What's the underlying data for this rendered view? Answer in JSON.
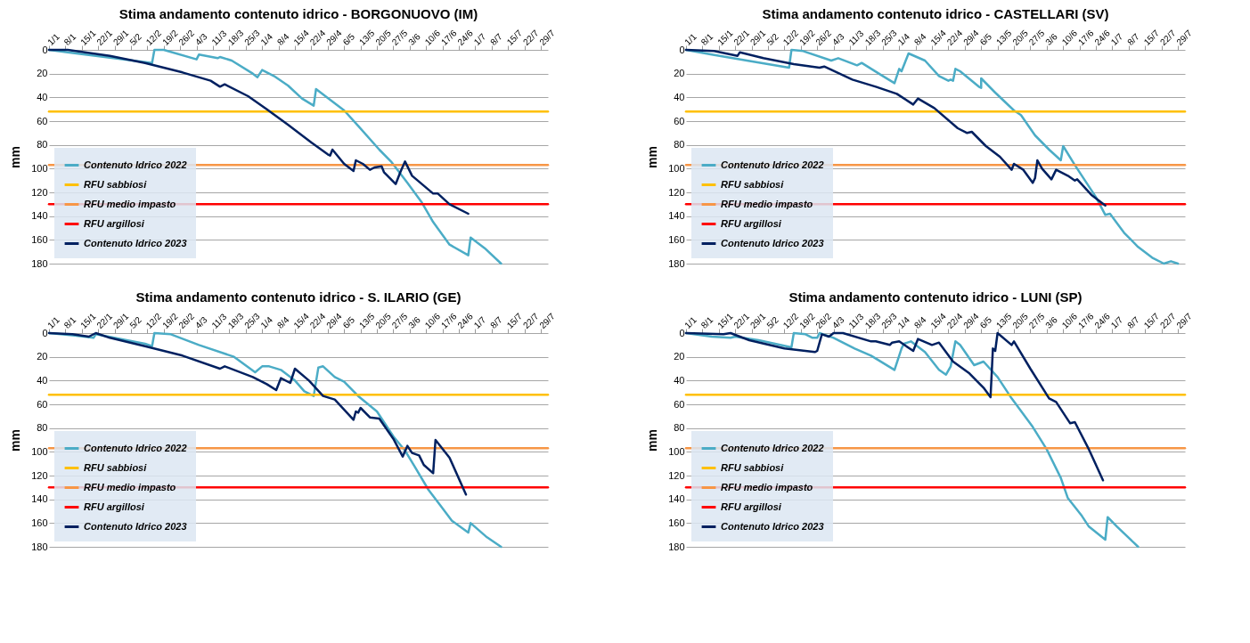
{
  "chart_data": [
    {
      "type": "line",
      "title": "Stima andamento contenuto idrico - BORGONUOVO (IM)",
      "ylabel": "mm",
      "xlim": [
        "--01-01",
        "--08-01"
      ],
      "ylim": [
        180,
        0
      ],
      "yticks": [
        0,
        20,
        40,
        60,
        80,
        100,
        120,
        140,
        160,
        180
      ],
      "grid": "y",
      "legend": "bottom left",
      "xticks": [
        {
          "value": "--01-01",
          "label": "1/1"
        },
        {
          "value": "--01-08",
          "label": "8/1"
        },
        {
          "value": "--01-15",
          "label": "15/1"
        },
        {
          "value": "--01-22",
          "label": "22/1"
        },
        {
          "value": "--01-29",
          "label": "29/1"
        },
        {
          "value": "--02-05",
          "label": "5/2"
        },
        {
          "value": "--02-12",
          "label": "12/2"
        },
        {
          "value": "--02-19",
          "label": "19/2"
        },
        {
          "value": "--02-26",
          "label": "26/2"
        },
        {
          "value": "--03-04",
          "label": "4/3"
        },
        {
          "value": "--03-11",
          "label": "11/3"
        },
        {
          "value": "--03-18",
          "label": "18/3"
        },
        {
          "value": "--03-25",
          "label": "25/3"
        },
        {
          "value": "--04-01",
          "label": "1/4"
        },
        {
          "value": "--04-08",
          "label": "8/4"
        },
        {
          "value": "--04-15",
          "label": "15/4"
        },
        {
          "value": "--04-22",
          "label": "22/4"
        },
        {
          "value": "--04-29",
          "label": "29/4"
        },
        {
          "value": "--05-06",
          "label": "6/5"
        },
        {
          "value": "--05-13",
          "label": "13/5"
        },
        {
          "value": "--05-20",
          "label": "20/5"
        },
        {
          "value": "--05-27",
          "label": "27/5"
        },
        {
          "value": "--06-03",
          "label": "3/6"
        },
        {
          "value": "--06-10",
          "label": "10/6"
        },
        {
          "value": "--06-17",
          "label": "17/6"
        },
        {
          "value": "--06-24",
          "label": "24/6"
        },
        {
          "value": "--07-01",
          "label": "1/7"
        },
        {
          "value": "--07-08",
          "label": "8/7"
        },
        {
          "value": "--07-15",
          "label": "15/7"
        },
        {
          "value": "--07-22",
          "label": "22/7"
        },
        {
          "value": "--07-29",
          "label": "29/7"
        }
      ],
      "series": [
        {
          "name": "Contenuto Idrico 2022",
          "color": "#4bacc6",
          "x": [
            "--01-01",
            "--01-09",
            "--02-14",
            "--02-15",
            "--02-19",
            "--03-04",
            "--03-05",
            "--03-13",
            "--03-14",
            "--03-19",
            "--03-28",
            "--03-30",
            "--04-01",
            "--04-06",
            "--04-12",
            "--04-18",
            "--04-23",
            "--04-24",
            "--04-28",
            "--05-06",
            "--05-12",
            "--05-21",
            "--05-26",
            "--06-02",
            "--06-08",
            "--06-13",
            "--06-20",
            "--06-28",
            "--06-29",
            "--07-05",
            "--07-12"
          ],
          "values": [
            0,
            2,
            11,
            0,
            0,
            8,
            4,
            7,
            6,
            9,
            20,
            23,
            17,
            22,
            30,
            41,
            47,
            33,
            39,
            51,
            64,
            84,
            94,
            112,
            128,
            145,
            164,
            173,
            158,
            167,
            180
          ]
        },
        {
          "name": "RFU sabbiosi",
          "color": "#ffc000",
          "x": [
            "--01-01",
            "--08-01"
          ],
          "values": [
            52,
            52
          ]
        },
        {
          "name": "RFU medio impasto",
          "color": "#f79646",
          "x": [
            "--01-01",
            "--08-01"
          ],
          "values": [
            97,
            97
          ]
        },
        {
          "name": "RFU argillosi",
          "color": "#ff0000",
          "x": [
            "--01-01",
            "--08-01"
          ],
          "values": [
            130,
            130
          ]
        },
        {
          "name": "Contenuto Idrico 2023",
          "color": "#002060",
          "x": [
            "--01-01",
            "--01-09",
            "--01-27",
            "--02-11",
            "--02-27",
            "--03-10",
            "--03-14",
            "--03-16",
            "--03-26",
            "--04-03",
            "--04-12",
            "--04-22",
            "--04-29",
            "--04-30",
            "--05-01",
            "--05-06",
            "--05-10",
            "--05-11",
            "--05-14",
            "--05-17",
            "--05-19",
            "--05-22",
            "--05-23",
            "--05-28",
            "--05-30",
            "--06-01",
            "--06-04",
            "--06-13",
            "--06-15",
            "--06-20",
            "--06-28"
          ],
          "values": [
            0,
            0,
            5,
            11,
            19,
            26,
            31,
            29,
            39,
            50,
            63,
            78,
            88,
            89,
            84,
            96,
            102,
            93,
            96,
            101,
            99,
            98,
            103,
            113,
            103,
            94,
            106,
            121,
            121,
            130,
            138
          ]
        }
      ]
    },
    {
      "type": "line",
      "title": "Stima andamento contenuto idrico - CASTELLARI (SV)",
      "ylabel": "mm",
      "xlim": [
        "--01-01",
        "--08-01"
      ],
      "ylim": [
        180,
        0
      ],
      "yticks": [
        0,
        20,
        40,
        60,
        80,
        100,
        120,
        140,
        160,
        180
      ],
      "grid": "y",
      "legend": "bottom left",
      "xticks": [
        {
          "value": "--01-01",
          "label": "1/1"
        },
        {
          "value": "--01-08",
          "label": "8/1"
        },
        {
          "value": "--01-15",
          "label": "15/1"
        },
        {
          "value": "--01-22",
          "label": "22/1"
        },
        {
          "value": "--01-29",
          "label": "29/1"
        },
        {
          "value": "--02-05",
          "label": "5/2"
        },
        {
          "value": "--02-12",
          "label": "12/2"
        },
        {
          "value": "--02-19",
          "label": "19/2"
        },
        {
          "value": "--02-26",
          "label": "26/2"
        },
        {
          "value": "--03-04",
          "label": "4/3"
        },
        {
          "value": "--03-11",
          "label": "11/3"
        },
        {
          "value": "--03-18",
          "label": "18/3"
        },
        {
          "value": "--03-25",
          "label": "25/3"
        },
        {
          "value": "--04-01",
          "label": "1/4"
        },
        {
          "value": "--04-08",
          "label": "8/4"
        },
        {
          "value": "--04-15",
          "label": "15/4"
        },
        {
          "value": "--04-22",
          "label": "22/4"
        },
        {
          "value": "--04-29",
          "label": "29/4"
        },
        {
          "value": "--05-06",
          "label": "6/5"
        },
        {
          "value": "--05-13",
          "label": "13/5"
        },
        {
          "value": "--05-20",
          "label": "20/5"
        },
        {
          "value": "--05-27",
          "label": "27/5"
        },
        {
          "value": "--06-03",
          "label": "3/6"
        },
        {
          "value": "--06-10",
          "label": "10/6"
        },
        {
          "value": "--06-17",
          "label": "17/6"
        },
        {
          "value": "--06-24",
          "label": "24/6"
        },
        {
          "value": "--07-01",
          "label": "1/7"
        },
        {
          "value": "--07-08",
          "label": "8/7"
        },
        {
          "value": "--07-15",
          "label": "15/7"
        },
        {
          "value": "--07-22",
          "label": "22/7"
        },
        {
          "value": "--07-29",
          "label": "29/7"
        }
      ],
      "series": [
        {
          "name": "Contenuto Idrico 2022",
          "color": "#4bacc6",
          "x": [
            "--01-01",
            "--01-12",
            "--01-27",
            "--02-14",
            "--02-15",
            "--02-20",
            "--03-03",
            "--03-06",
            "--03-14",
            "--03-16",
            "--03-25",
            "--03-30",
            "--04-01",
            "--04-02",
            "--04-05",
            "--04-12",
            "--04-18",
            "--04-22",
            "--04-23",
            "--04-24",
            "--04-25",
            "--04-27",
            "--05-05",
            "--05-06",
            "--05-06",
            "--05-12",
            "--05-20",
            "--05-23",
            "--05-29",
            "--06-04",
            "--06-09",
            "--06-10",
            "--06-15",
            "--06-21",
            "--06-24",
            "--06-28",
            "--06-30",
            "--07-06",
            "--07-12",
            "--07-18",
            "--07-23",
            "--07-26",
            "--07-29"
          ],
          "values": [
            0,
            4,
            9,
            15,
            0,
            1,
            9,
            7,
            13,
            11,
            22,
            28,
            16,
            18,
            3,
            9,
            22,
            26,
            25,
            26,
            16,
            18,
            31,
            32,
            24,
            36,
            51,
            55,
            72,
            84,
            93,
            81,
            97,
            115,
            124,
            139,
            138,
            154,
            166,
            175,
            180,
            178,
            180
          ]
        },
        {
          "name": "RFU sabbiosi",
          "color": "#ffc000",
          "x": [
            "--01-01",
            "--08-01"
          ],
          "values": [
            52,
            52
          ]
        },
        {
          "name": "RFU medio impasto",
          "color": "#f79646",
          "x": [
            "--01-01",
            "--08-01"
          ],
          "values": [
            97,
            97
          ]
        },
        {
          "name": "RFU argillosi",
          "color": "#ff0000",
          "x": [
            "--01-01",
            "--08-01"
          ],
          "values": [
            130,
            130
          ]
        },
        {
          "name": "Contenuto Idrico 2023",
          "color": "#002060",
          "x": [
            "--01-01",
            "--01-13",
            "--01-23",
            "--01-24",
            "--02-03",
            "--02-16",
            "--02-27",
            "--02-29",
            "--03-12",
            "--03-22",
            "--03-31",
            "--04-07",
            "--04-09",
            "--04-16",
            "--04-26",
            "--04-30",
            "--05-02",
            "--05-08",
            "--05-14",
            "--05-19",
            "--05-20",
            "--05-24",
            "--05-28",
            "--05-29",
            "--05-30",
            "--06-01",
            "--06-05",
            "--06-07",
            "--06-12",
            "--06-15",
            "--06-16",
            "--06-22",
            "--06-28"
          ],
          "values": [
            0,
            1,
            5,
            2,
            7,
            12,
            15,
            14,
            25,
            31,
            37,
            46,
            41,
            49,
            66,
            70,
            69,
            81,
            90,
            101,
            96,
            101,
            112,
            108,
            93,
            100,
            109,
            101,
            106,
            110,
            109,
            122,
            131
          ]
        }
      ]
    },
    {
      "type": "line",
      "title": "Stima andamento contenuto idrico - S. ILARIO (GE)",
      "ylabel": "mm",
      "xlim": [
        "--01-01",
        "--08-01"
      ],
      "ylim": [
        180,
        0
      ],
      "yticks": [
        0,
        20,
        40,
        60,
        80,
        100,
        120,
        140,
        160,
        180
      ],
      "grid": "y",
      "legend": "bottom left",
      "xticks": [
        {
          "value": "--01-01",
          "label": "1/1"
        },
        {
          "value": "--01-08",
          "label": "8/1"
        },
        {
          "value": "--01-15",
          "label": "15/1"
        },
        {
          "value": "--01-22",
          "label": "22/1"
        },
        {
          "value": "--01-29",
          "label": "29/1"
        },
        {
          "value": "--02-05",
          "label": "5/2"
        },
        {
          "value": "--02-12",
          "label": "12/2"
        },
        {
          "value": "--02-19",
          "label": "19/2"
        },
        {
          "value": "--02-26",
          "label": "26/2"
        },
        {
          "value": "--03-04",
          "label": "4/3"
        },
        {
          "value": "--03-11",
          "label": "11/3"
        },
        {
          "value": "--03-18",
          "label": "18/3"
        },
        {
          "value": "--03-25",
          "label": "25/3"
        },
        {
          "value": "--04-01",
          "label": "1/4"
        },
        {
          "value": "--04-08",
          "label": "8/4"
        },
        {
          "value": "--04-15",
          "label": "15/4"
        },
        {
          "value": "--04-22",
          "label": "22/4"
        },
        {
          "value": "--04-29",
          "label": "29/4"
        },
        {
          "value": "--05-06",
          "label": "6/5"
        },
        {
          "value": "--05-13",
          "label": "13/5"
        },
        {
          "value": "--05-20",
          "label": "20/5"
        },
        {
          "value": "--05-27",
          "label": "27/5"
        },
        {
          "value": "--06-03",
          "label": "3/6"
        },
        {
          "value": "--06-10",
          "label": "10/6"
        },
        {
          "value": "--06-17",
          "label": "17/6"
        },
        {
          "value": "--06-24",
          "label": "24/6"
        },
        {
          "value": "--07-01",
          "label": "1/7"
        },
        {
          "value": "--07-08",
          "label": "8/7"
        },
        {
          "value": "--07-15",
          "label": "15/7"
        },
        {
          "value": "--07-22",
          "label": "22/7"
        },
        {
          "value": "--07-29",
          "label": "29/7"
        }
      ],
      "series": [
        {
          "name": "Contenuto Idrico 2022",
          "color": "#4bacc6",
          "x": [
            "--01-01",
            "--01-12",
            "--01-20",
            "--01-21",
            "--02-11",
            "--02-14",
            "--02-15",
            "--02-22",
            "--03-05",
            "--03-20",
            "--03-29",
            "--04-01",
            "--04-04",
            "--04-09",
            "--04-15",
            "--04-19",
            "--04-23",
            "--04-25",
            "--04-27",
            "--05-02",
            "--05-06",
            "--05-12",
            "--05-20",
            "--05-27",
            "--06-01",
            "--06-05",
            "--06-11",
            "--06-16",
            "--06-21",
            "--06-28",
            "--06-29",
            "--07-06",
            "--07-12"
          ],
          "values": [
            0,
            2,
            4,
            1,
            9,
            11,
            0,
            1,
            10,
            20,
            33,
            28,
            28,
            31,
            40,
            49,
            53,
            29,
            28,
            37,
            41,
            53,
            66,
            87,
            99,
            112,
            132,
            145,
            158,
            168,
            160,
            172,
            180
          ]
        },
        {
          "name": "RFU sabbiosi",
          "color": "#ffc000",
          "x": [
            "--01-01",
            "--08-01"
          ],
          "values": [
            52,
            52
          ]
        },
        {
          "name": "RFU medio impasto",
          "color": "#f79646",
          "x": [
            "--01-01",
            "--08-01"
          ],
          "values": [
            97,
            97
          ]
        },
        {
          "name": "RFU argillosi",
          "color": "#ff0000",
          "x": [
            "--01-01",
            "--08-01"
          ],
          "values": [
            130,
            130
          ]
        },
        {
          "name": "Contenuto Idrico 2023",
          "color": "#002060",
          "x": [
            "--01-01",
            "--01-11",
            "--01-18",
            "--01-21",
            "--01-27",
            "--02-11",
            "--02-27",
            "--03-14",
            "--03-16",
            "--03-28",
            "--04-03",
            "--04-07",
            "--04-09",
            "--04-13",
            "--04-15",
            "--04-21",
            "--04-27",
            "--05-02",
            "--05-10",
            "--05-11",
            "--05-12",
            "--05-13",
            "--05-17",
            "--05-21",
            "--05-27",
            "--05-31",
            "--06-02",
            "--06-04",
            "--06-07",
            "--06-09",
            "--06-13",
            "--06-14",
            "--06-20",
            "--06-27"
          ],
          "values": [
            0,
            1,
            3,
            0,
            4,
            11,
            19,
            30,
            28,
            37,
            43,
            48,
            38,
            42,
            30,
            40,
            53,
            56,
            73,
            66,
            67,
            63,
            71,
            72,
            89,
            104,
            95,
            101,
            103,
            111,
            118,
            90,
            105,
            136
          ]
        }
      ]
    },
    {
      "type": "line",
      "title": "Stima andamento contenuto idrico - LUNI (SP)",
      "ylabel": "mm",
      "xlim": [
        "--01-01",
        "--08-01"
      ],
      "ylim": [
        180,
        0
      ],
      "yticks": [
        0,
        20,
        40,
        60,
        80,
        100,
        120,
        140,
        160,
        180
      ],
      "grid": "y",
      "legend": "bottom left",
      "xticks": [
        {
          "value": "--01-01",
          "label": "1/1"
        },
        {
          "value": "--01-08",
          "label": "8/1"
        },
        {
          "value": "--01-15",
          "label": "15/1"
        },
        {
          "value": "--01-22",
          "label": "22/1"
        },
        {
          "value": "--01-29",
          "label": "29/1"
        },
        {
          "value": "--02-05",
          "label": "5/2"
        },
        {
          "value": "--02-12",
          "label": "12/2"
        },
        {
          "value": "--02-19",
          "label": "19/2"
        },
        {
          "value": "--02-26",
          "label": "26/2"
        },
        {
          "value": "--03-04",
          "label": "4/3"
        },
        {
          "value": "--03-11",
          "label": "11/3"
        },
        {
          "value": "--03-18",
          "label": "18/3"
        },
        {
          "value": "--03-25",
          "label": "25/3"
        },
        {
          "value": "--04-01",
          "label": "1/4"
        },
        {
          "value": "--04-08",
          "label": "8/4"
        },
        {
          "value": "--04-15",
          "label": "15/4"
        },
        {
          "value": "--04-22",
          "label": "22/4"
        },
        {
          "value": "--04-29",
          "label": "29/4"
        },
        {
          "value": "--05-06",
          "label": "6/5"
        },
        {
          "value": "--05-13",
          "label": "13/5"
        },
        {
          "value": "--05-20",
          "label": "20/5"
        },
        {
          "value": "--05-27",
          "label": "27/5"
        },
        {
          "value": "--06-03",
          "label": "3/6"
        },
        {
          "value": "--06-10",
          "label": "10/6"
        },
        {
          "value": "--06-17",
          "label": "17/6"
        },
        {
          "value": "--06-24",
          "label": "24/6"
        },
        {
          "value": "--07-01",
          "label": "1/7"
        },
        {
          "value": "--07-08",
          "label": "8/7"
        },
        {
          "value": "--07-15",
          "label": "15/7"
        },
        {
          "value": "--07-22",
          "label": "22/7"
        },
        {
          "value": "--07-29",
          "label": "29/7"
        }
      ],
      "series": [
        {
          "name": "Contenuto Idrico 2022",
          "color": "#4bacc6",
          "x": [
            "--01-01",
            "--01-12",
            "--01-20",
            "--01-22",
            "--02-01",
            "--02-15",
            "--02-16",
            "--02-21",
            "--02-24",
            "--02-26",
            "--02-27",
            "--03-04",
            "--03-13",
            "--03-20",
            "--03-30",
            "--04-02",
            "--04-03",
            "--04-06",
            "--04-12",
            "--04-18",
            "--04-21",
            "--04-23",
            "--04-25",
            "--04-27",
            "--05-03",
            "--05-07",
            "--05-13",
            "--05-19",
            "--05-28",
            "--06-03",
            "--06-09",
            "--06-12",
            "--06-18",
            "--06-21",
            "--06-28",
            "--06-29",
            "--07-03",
            "--07-12"
          ],
          "values": [
            0,
            3,
            4,
            3,
            6,
            12,
            0,
            1,
            4,
            4,
            0,
            4,
            13,
            19,
            31,
            13,
            9,
            7,
            16,
            31,
            35,
            28,
            7,
            10,
            27,
            24,
            37,
            55,
            79,
            98,
            122,
            139,
            154,
            163,
            174,
            155,
            163,
            180
          ]
        },
        {
          "name": "RFU sabbiosi",
          "color": "#ffc000",
          "x": [
            "--01-01",
            "--08-01"
          ],
          "values": [
            52,
            52
          ]
        },
        {
          "name": "RFU medio impasto",
          "color": "#f79646",
          "x": [
            "--01-01",
            "--08-01"
          ],
          "values": [
            97,
            97
          ]
        },
        {
          "name": "RFU argillosi",
          "color": "#ff0000",
          "x": [
            "--01-01",
            "--08-01"
          ],
          "values": [
            130,
            130
          ]
        },
        {
          "name": "Contenuto Idrico 2023",
          "color": "#002060",
          "x": [
            "--01-01",
            "--01-17",
            "--01-20",
            "--01-28",
            "--02-12",
            "--02-25",
            "--02-26",
            "--02-28",
            "--03-02",
            "--03-04",
            "--03-08",
            "--03-20",
            "--03-22",
            "--03-28",
            "--03-29",
            "--04-01",
            "--04-07",
            "--04-09",
            "--04-15",
            "--04-18",
            "--04-24",
            "--05-01",
            "--05-07",
            "--05-10",
            "--05-11",
            "--05-12",
            "--05-13",
            "--05-19",
            "--05-20",
            "--05-27",
            "--06-04",
            "--06-07",
            "--06-13",
            "--06-15",
            "--06-21",
            "--06-27"
          ],
          "values": [
            0,
            1,
            0,
            6,
            13,
            16,
            15,
            1,
            3,
            0,
            0,
            7,
            7,
            10,
            8,
            7,
            15,
            5,
            10,
            8,
            24,
            34,
            46,
            54,
            13,
            15,
            0,
            10,
            7,
            30,
            55,
            58,
            76,
            75,
            98,
            124
          ]
        }
      ]
    }
  ]
}
